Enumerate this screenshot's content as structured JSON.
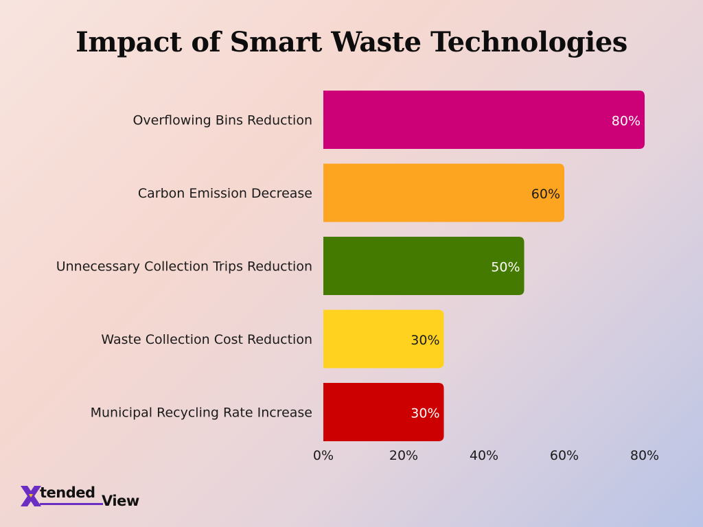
{
  "title": "Impact of Smart Waste Technologies",
  "logo": {
    "part1": "tended",
    "part2": "View",
    "mark": "X",
    "colors": [
      "#6a2fc2",
      "#f0c020"
    ]
  },
  "chart_data": {
    "type": "bar",
    "orientation": "horizontal",
    "title": "Impact of Smart Waste Technologies",
    "categories": [
      "Overflowing Bins Reduction",
      "Carbon Emission Decrease",
      "Unnecessary Collection Trips Reduction",
      "Waste Collection Cost Reduction",
      "Municipal Recycling Rate Increase"
    ],
    "values": [
      80,
      60,
      50,
      30,
      30
    ],
    "value_labels": [
      "80%",
      "60%",
      "50%",
      "30%",
      "30%"
    ],
    "colors": [
      "#cc0077",
      "#fda521",
      "#457a00",
      "#ffd21f",
      "#cc0000"
    ],
    "value_label_colors": [
      "#ffffff",
      "#1a1a1a",
      "#ffffff",
      "#1a1a1a",
      "#ffffff"
    ],
    "xlim": [
      0,
      80
    ],
    "xticks": [
      0,
      20,
      40,
      60,
      80
    ],
    "xtick_labels": [
      "0%",
      "20%",
      "40%",
      "60%",
      "80%"
    ],
    "grid": false,
    "legend": "none"
  }
}
